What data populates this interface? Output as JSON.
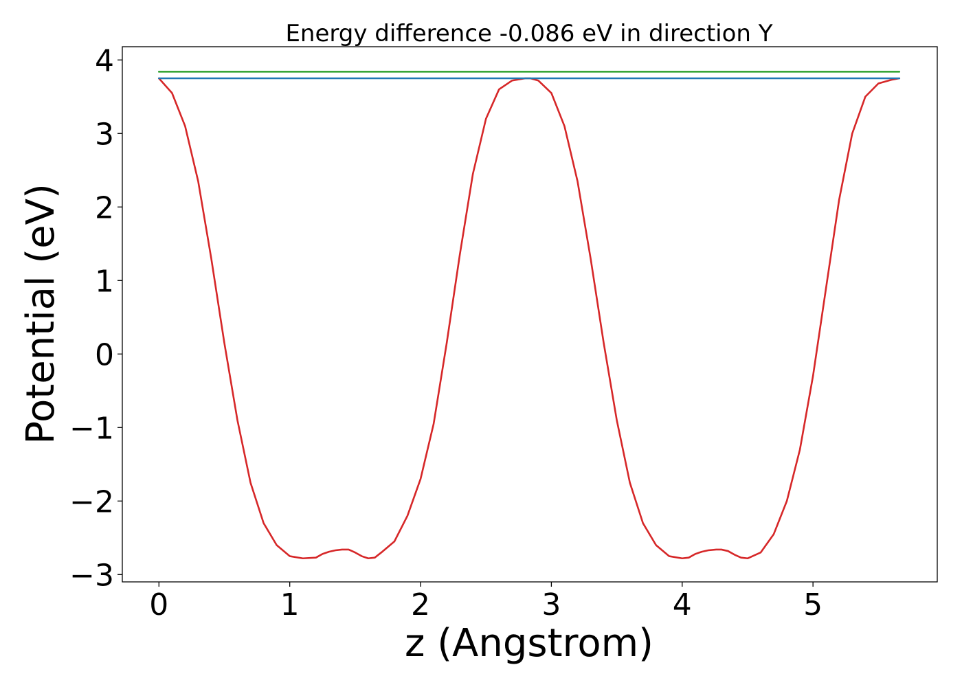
{
  "chart_data": {
    "type": "line",
    "title": "Energy difference -0.086 eV in direction Y",
    "xlabel": "z (Angstrom)",
    "ylabel": "Potential (eV)",
    "xlim": [
      -0.28,
      5.95
    ],
    "ylim": [
      -3.1,
      4.18
    ],
    "xticks": [
      0,
      1,
      2,
      3,
      4,
      5
    ],
    "xtick_labels": [
      "0",
      "1",
      "2",
      "3",
      "4",
      "5"
    ],
    "yticks": [
      -3,
      -2,
      -1,
      0,
      1,
      2,
      3,
      4
    ],
    "ytick_labels": [
      "−3",
      "−2",
      "−1",
      "0",
      "1",
      "2",
      "3",
      "4"
    ],
    "grid": false,
    "series": [
      {
        "color": "#d62728",
        "x": [
          0.0,
          0.1,
          0.2,
          0.3,
          0.4,
          0.5,
          0.6,
          0.7,
          0.8,
          0.9,
          1.0,
          1.1,
          1.2,
          1.25,
          1.3,
          1.35,
          1.4,
          1.42,
          1.45,
          1.5,
          1.55,
          1.6,
          1.65,
          1.7,
          1.8,
          1.9,
          2.0,
          2.1,
          2.2,
          2.3,
          2.4,
          2.5,
          2.6,
          2.7,
          2.8,
          2.84,
          2.9,
          3.0,
          3.1,
          3.2,
          3.3,
          3.4,
          3.5,
          3.6,
          3.7,
          3.8,
          3.9,
          4.0,
          4.05,
          4.1,
          4.15,
          4.2,
          4.26,
          4.3,
          4.35,
          4.4,
          4.45,
          4.5,
          4.6,
          4.7,
          4.8,
          4.9,
          5.0,
          5.1,
          5.2,
          5.3,
          5.4,
          5.5,
          5.6,
          5.66
        ],
        "y": [
          3.75,
          3.55,
          3.1,
          2.35,
          1.3,
          0.15,
          -0.9,
          -1.75,
          -2.3,
          -2.6,
          -2.75,
          -2.78,
          -2.77,
          -2.72,
          -2.69,
          -2.67,
          -2.66,
          -2.66,
          -2.66,
          -2.7,
          -2.75,
          -2.78,
          -2.77,
          -2.7,
          -2.55,
          -2.2,
          -1.7,
          -0.95,
          0.15,
          1.35,
          2.45,
          3.2,
          3.6,
          3.72,
          3.75,
          3.75,
          3.72,
          3.55,
          3.1,
          2.35,
          1.3,
          0.15,
          -0.9,
          -1.75,
          -2.3,
          -2.6,
          -2.75,
          -2.78,
          -2.77,
          -2.72,
          -2.69,
          -2.67,
          -2.66,
          -2.66,
          -2.68,
          -2.73,
          -2.77,
          -2.78,
          -2.7,
          -2.45,
          -2.0,
          -1.3,
          -0.3,
          0.9,
          2.1,
          3.0,
          3.5,
          3.68,
          3.73,
          3.75
        ]
      },
      {
        "color": "#1f77b4",
        "x": [
          0.0,
          5.66
        ],
        "y": [
          3.75,
          3.75
        ]
      },
      {
        "color": "#2ca02c",
        "x": [
          0.0,
          5.66
        ],
        "y": [
          3.84,
          3.84
        ]
      }
    ]
  }
}
